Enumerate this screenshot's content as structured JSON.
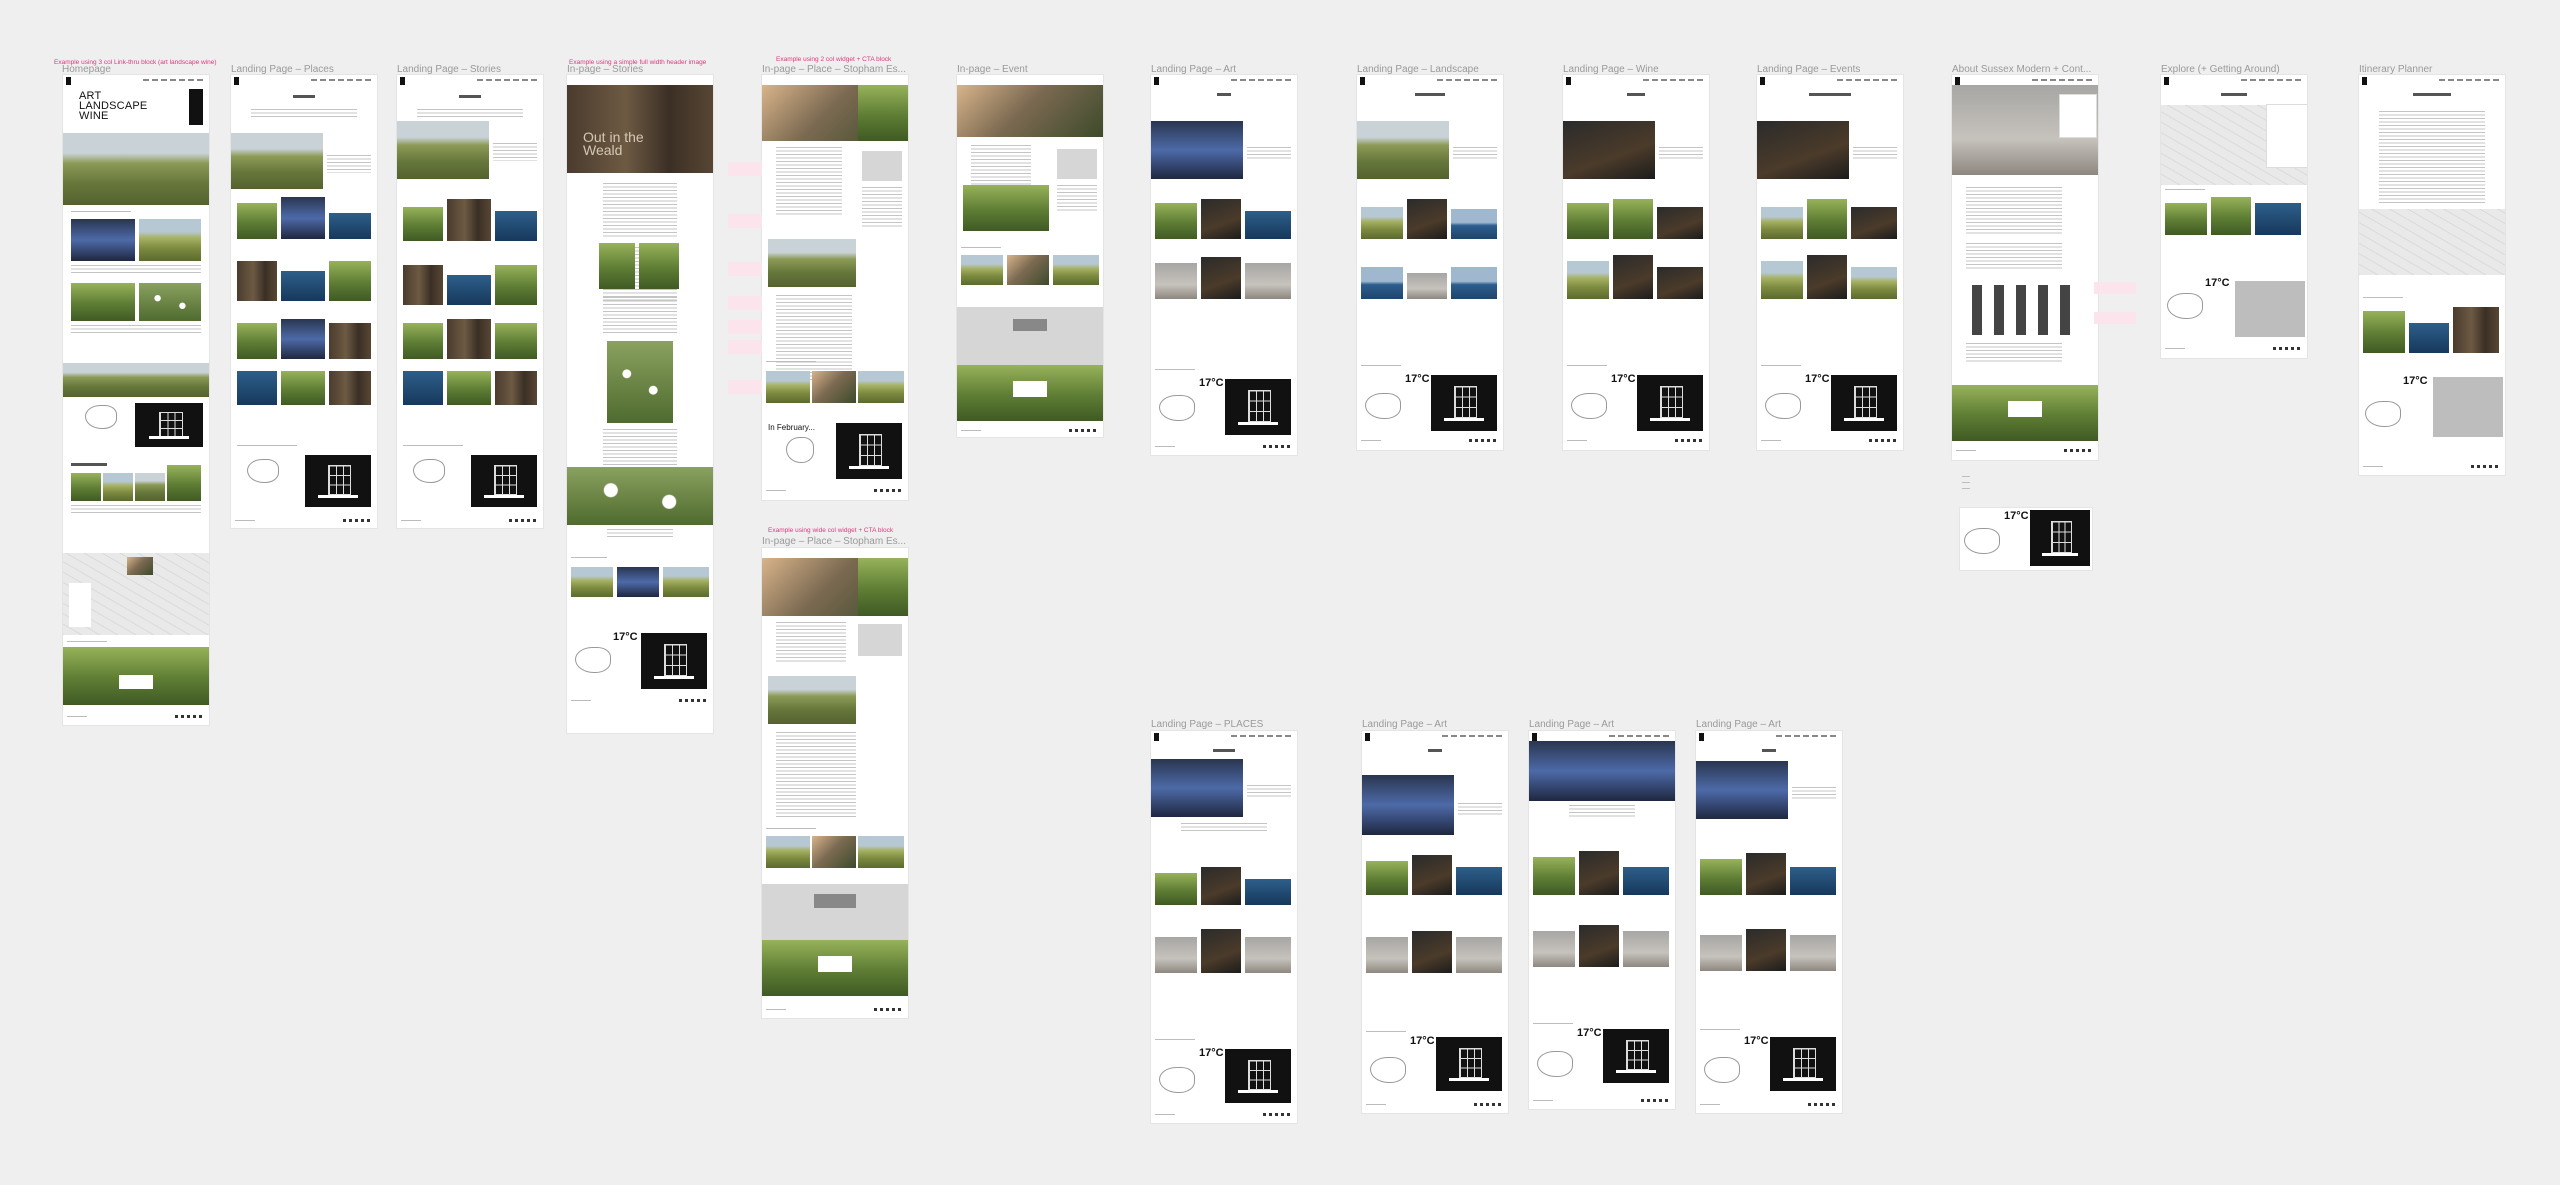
{
  "canvas": {
    "background_color": "#efefef",
    "label_color": "#9a9a9a",
    "annotation_color": "#e0387e"
  },
  "frames": [
    {
      "label": "Homepage"
    },
    {
      "label": "Landing Page – Places"
    },
    {
      "label": "Landing Page – Stories"
    },
    {
      "label": "In-page – Stories"
    },
    {
      "label": "In-page – Place – Stopham Es..."
    },
    {
      "label": "In-page – Event"
    },
    {
      "label": "Landing Page – Art"
    },
    {
      "label": "Landing Page – Landscape"
    },
    {
      "label": "Landing Page – Wine"
    },
    {
      "label": "Landing Page – Events"
    },
    {
      "label": "About Sussex Modern + Cont..."
    },
    {
      "label": "Explore (+ Getting Around)"
    },
    {
      "label": "Itinerary Planner"
    },
    {
      "label": "In-page – Place – Stopham Es..."
    },
    {
      "label": "Landing Page – PLACES"
    },
    {
      "label": "Landing Page – Art"
    },
    {
      "label": "Landing Page – Art"
    },
    {
      "label": "Landing Page – Art"
    }
  ],
  "annotations": {
    "homepage": "Example using 3 col Link-thru block (art landscape wine)",
    "stories": "Example using a simple full width header image",
    "place": "Example using 2 col widget + CTA block",
    "place2": "Example using wide col widget + CTA block"
  },
  "content": {
    "home_title": "ART\nLANDSCAPE\nWINE",
    "hero_text": "Out in the\nWeald",
    "february": "In February...",
    "temperature": "17°C",
    "places_heading": "PLACES",
    "stories_heading": "STORIES",
    "art_heading": "ART",
    "landscape_heading": "LANDSCAPE",
    "wine_heading": "WINE",
    "events_heading": "WHAT'S ON IN SUSSEX",
    "explore_heading": "EXPLORE",
    "itinerary_heading": "MY ITINERARY"
  }
}
